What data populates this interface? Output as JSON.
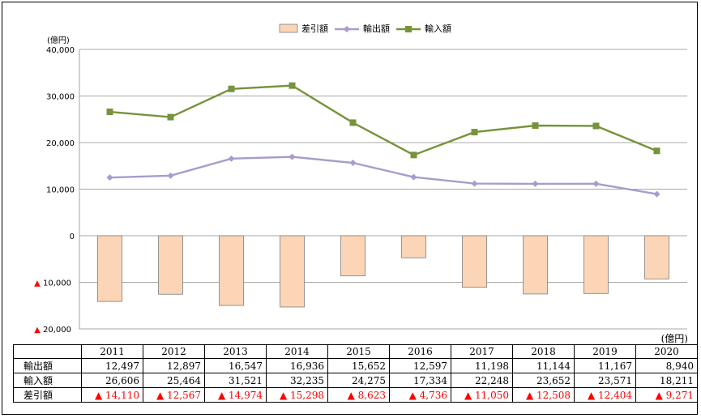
{
  "colors": {
    "diff_bar_fill": "#fbd5b5",
    "diff_bar_stroke": "#7f7f7f",
    "export_line": "#a99bcd",
    "import_line": "#77933c",
    "negative_text": "#ff0000"
  },
  "table": {
    "unit": "(億円)",
    "years": [
      "2011",
      "2012",
      "2013",
      "2014",
      "2015",
      "2016",
      "2017",
      "2018",
      "2019",
      "2020"
    ],
    "rows": [
      {
        "label": "輸出額",
        "values": [
          "12,497",
          "12,897",
          "16,547",
          "16,936",
          "15,652",
          "12,597",
          "11,198",
          "11,144",
          "11,167",
          "8,940"
        ]
      },
      {
        "label": "輸入額",
        "values": [
          "26,606",
          "25,464",
          "31,521",
          "32,235",
          "24,275",
          "17,334",
          "22,248",
          "23,652",
          "23,571",
          "18,211"
        ]
      },
      {
        "label": "差引額",
        "values": [
          "▲ 14,110",
          "▲ 12,567",
          "▲ 14,974",
          "▲ 15,298",
          "▲ 8,623",
          "▲ 4,736",
          "▲ 11,050",
          "▲ 12,508",
          "▲ 12,404",
          "▲ 9,271"
        ]
      }
    ]
  },
  "chart_data": {
    "type": "bar+line",
    "categories": [
      "2011",
      "2012",
      "2013",
      "2014",
      "2015",
      "2016",
      "2017",
      "2018",
      "2019",
      "2020"
    ],
    "y_unit_label": "(億円)",
    "ylim": [
      -20000,
      40000
    ],
    "yticks": [
      -20000,
      -10000,
      0,
      10000,
      20000,
      30000,
      40000
    ],
    "ytick_labels": [
      "▲ 20,000",
      "▲ 10,000",
      "0",
      "10,000",
      "20,000",
      "30,000",
      "40,000"
    ],
    "grid": true,
    "legend_position": "top-center",
    "series": [
      {
        "name": "差引額",
        "kind": "bar",
        "values": [
          -14110,
          -12567,
          -14974,
          -15298,
          -8623,
          -4736,
          -11050,
          -12508,
          -12404,
          -9271
        ]
      },
      {
        "name": "輸出額",
        "kind": "line",
        "marker": "diamond",
        "values": [
          12497,
          12897,
          16547,
          16936,
          15652,
          12597,
          11198,
          11144,
          11167,
          8940
        ]
      },
      {
        "name": "輸入額",
        "kind": "line",
        "marker": "square",
        "values": [
          26606,
          25464,
          31521,
          32235,
          24275,
          17334,
          22248,
          23652,
          23571,
          18211
        ]
      }
    ]
  }
}
